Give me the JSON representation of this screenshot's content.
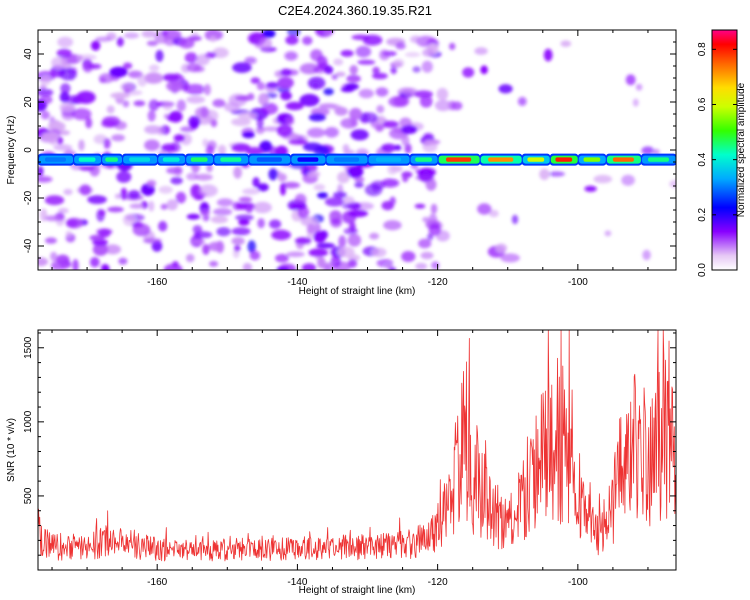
{
  "figure_title": "C2E4.2024.360.19.35.R21",
  "chart_data": [
    {
      "type": "heatmap",
      "xlabel": "Height of straight line (km)",
      "ylabel": "Frequency (Hz)",
      "xlim": [
        -177,
        -86
      ],
      "ylim": [
        -50,
        50
      ],
      "x_ticks": [
        "-160",
        "-140",
        "-120",
        "-100"
      ],
      "x_tick_values": [
        -160,
        -140,
        -120,
        -100
      ],
      "y_ticks": [
        "-40",
        "-20",
        "0",
        "20",
        "40"
      ],
      "y_tick_values": [
        -40,
        -20,
        0,
        20,
        40
      ],
      "colorbar": {
        "label": "Normalized spectral amplitude",
        "range": [
          0.0,
          0.87
        ],
        "ticks": [
          "0.0",
          "0.2",
          "0.4",
          "0.6",
          "0.8"
        ],
        "tick_values": [
          0.0,
          0.2,
          0.4,
          0.6,
          0.8
        ]
      },
      "band": {
        "center_frequency": -4,
        "segments": [
          {
            "x0": -177,
            "x1": -172,
            "amp": 0.3
          },
          {
            "x0": -172,
            "x1": -168,
            "amp": 0.42
          },
          {
            "x0": -168,
            "x1": -165,
            "amp": 0.45
          },
          {
            "x0": -165,
            "x1": -160,
            "amp": 0.38
          },
          {
            "x0": -160,
            "x1": -156,
            "amp": 0.4
          },
          {
            "x0": -156,
            "x1": -152,
            "amp": 0.46
          },
          {
            "x0": -152,
            "x1": -147,
            "amp": 0.44
          },
          {
            "x0": -147,
            "x1": -141,
            "amp": 0.28
          },
          {
            "x0": -141,
            "x1": -136,
            "amp": 0.22
          },
          {
            "x0": -136,
            "x1": -130,
            "amp": 0.3
          },
          {
            "x0": -130,
            "x1": -124,
            "amp": 0.34
          },
          {
            "x0": -124,
            "x1": -120,
            "amp": 0.45
          },
          {
            "x0": -120,
            "x1": -114,
            "amp": 0.78
          },
          {
            "x0": -114,
            "x1": -108,
            "amp": 0.72
          },
          {
            "x0": -108,
            "x1": -104,
            "amp": 0.6
          },
          {
            "x0": -104,
            "x1": -100,
            "amp": 0.8
          },
          {
            "x0": -100,
            "x1": -96,
            "amp": 0.55
          },
          {
            "x0": -96,
            "x1": -91,
            "amp": 0.75
          },
          {
            "x0": -91,
            "x1": -86,
            "amp": 0.45
          }
        ]
      },
      "noise_level": 0.06
    },
    {
      "type": "line",
      "xlabel": "Height of straight line (km)",
      "ylabel": "SNR (10 * v/v)",
      "xlim": [
        -177,
        -86
      ],
      "ylim": [
        0,
        1620
      ],
      "x_ticks": [
        "-160",
        "-140",
        "-120",
        "-100"
      ],
      "x_tick_values": [
        -160,
        -140,
        -120,
        -100
      ],
      "y_ticks": [
        "500",
        "1000",
        "1500"
      ],
      "y_tick_values": [
        500,
        1000,
        1500
      ],
      "color": "#ee3333",
      "envelope": {
        "x": [
          -177,
          -176,
          -174,
          -170,
          -166,
          -164,
          -162,
          -158,
          -150,
          -140,
          -130,
          -124,
          -121,
          -119,
          -117,
          -116,
          -115,
          -113,
          -111,
          -109,
          -107,
          -105,
          -103,
          -101,
          -100,
          -99,
          -98,
          -97,
          -95,
          -94,
          -92,
          -90,
          -88,
          -87,
          -86
        ],
        "y": [
          430,
          260,
          210,
          230,
          300,
          260,
          220,
          180,
          190,
          200,
          220,
          250,
          320,
          600,
          1100,
          1450,
          1000,
          780,
          480,
          520,
          900,
          1300,
          1400,
          1250,
          850,
          600,
          400,
          380,
          600,
          1100,
          1300,
          1150,
          1500,
          1550,
          900
        ]
      }
    }
  ]
}
